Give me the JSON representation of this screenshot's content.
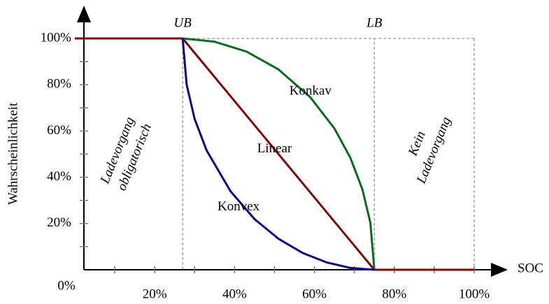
{
  "chart_data": {
    "type": "line",
    "y_label": "Wahrscheinlichkeit",
    "x_label": "SOC",
    "xlim": [
      0,
      100
    ],
    "ylim": [
      0,
      100
    ],
    "xticks": [
      {
        "value": 0,
        "label": "0%"
      },
      {
        "value": 20,
        "label": "20%"
      },
      {
        "value": 40,
        "label": "40%"
      },
      {
        "value": 60,
        "label": "60%"
      },
      {
        "value": 80,
        "label": "80%"
      },
      {
        "value": 100,
        "label": "100%"
      }
    ],
    "yticks": [
      {
        "value": 20,
        "label": "20%"
      },
      {
        "value": 40,
        "label": "40%"
      },
      {
        "value": 60,
        "label": "60%"
      },
      {
        "value": 80,
        "label": "80%"
      },
      {
        "value": 100,
        "label": "100%"
      }
    ],
    "xminor_ticks": [
      10,
      30,
      50,
      70,
      90
    ],
    "yminor_ticks": [
      10,
      30,
      50,
      70,
      90
    ],
    "bounds": [
      {
        "name": "UB",
        "x": 27
      },
      {
        "name": "LB",
        "x": 75
      }
    ],
    "series": [
      {
        "name": "Linear",
        "color": "#7a0a0a",
        "x": [
          0,
          27,
          75,
          100
        ],
        "values": [
          100,
          100,
          0,
          0
        ],
        "label_at": [
          50,
          52
        ]
      },
      {
        "name": "Konkav",
        "color": "#0b6a1f",
        "x": [
          27,
          35,
          43,
          51,
          59,
          65,
          69,
          72,
          74,
          75
        ],
        "values": [
          100,
          98.6,
          94.3,
          86.6,
          74.5,
          61.1,
          48.4,
          34.8,
          20.4,
          0
        ],
        "label_at": [
          59,
          77
        ]
      },
      {
        "name": "Konvex",
        "color": "#0a0a7a",
        "x": [
          27,
          28,
          30,
          33,
          39,
          45,
          51,
          57,
          63,
          69,
          75
        ],
        "values": [
          100,
          80,
          65.2,
          51.6,
          33.9,
          21.9,
          13.4,
          7.3,
          3.2,
          0.8,
          0
        ],
        "label_at": [
          41,
          27
        ]
      }
    ],
    "regions": [
      {
        "lines": [
          "Ladevorgang",
          "obligatorisch"
        ],
        "x": 13,
        "y": 50
      },
      {
        "lines": [
          "Kein",
          "Ladevorgang"
        ],
        "x": 88,
        "y": 53
      }
    ]
  }
}
